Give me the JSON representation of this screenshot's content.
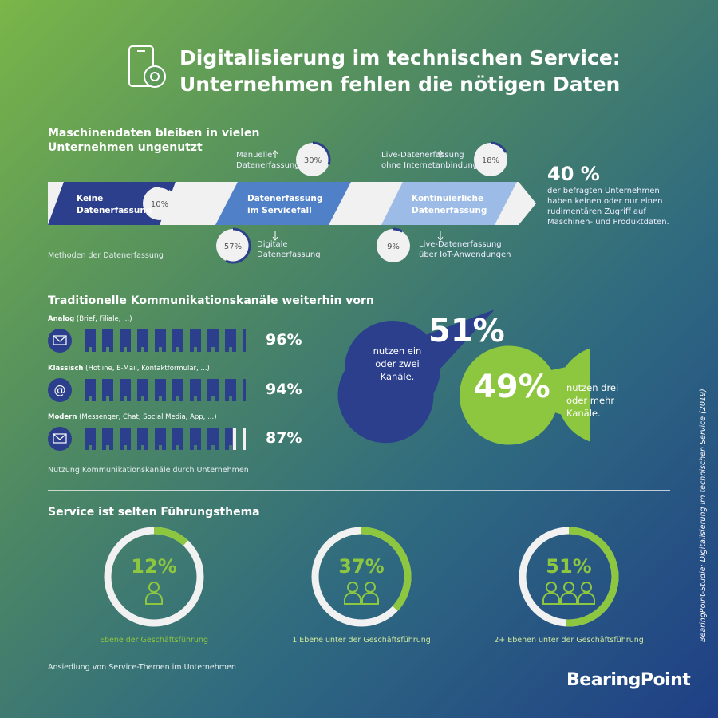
{
  "header": {
    "title_line1": "Digitalisierung im technischen Service:",
    "title_line2": "Unternehmen fehlen die nötigen Daten",
    "icon": "phone-gear-icon"
  },
  "colors": {
    "dark_blue": "#2b3f8c",
    "mid_blue": "#4f80c8",
    "light_blue": "#9cbbe6",
    "lime": "#8dc63f",
    "band": "#f1f1f1"
  },
  "section1": {
    "heading_line1": "Maschinendaten bleiben in vielen",
    "heading_line2": "Unternehmen ungenutzt",
    "caption": "Methoden der Datenerfassung",
    "stages": [
      {
        "line1": "Keine",
        "line2": "Datenerfassung"
      },
      {
        "line1": "Datenerfassung",
        "line2": "im Servicefall"
      },
      {
        "line1": "Kontinuierliche",
        "line2": "Datenerfassung"
      }
    ],
    "sub": [
      {
        "value": "10%",
        "line1": "",
        "line2": ""
      },
      {
        "value": "30%",
        "line1": "Manuelle",
        "line2": "Datenerfassung"
      },
      {
        "value": "57%",
        "line1": "Digitale",
        "line2": "Datenerfassung"
      },
      {
        "value": "18%",
        "line1": "Live-Datenerfassung",
        "line2": "ohne Internetanbindung"
      },
      {
        "value": "9%",
        "line1": "Live-Datenerfassung",
        "line2": "über IoT-Anwendungen"
      }
    ],
    "highlight_value": "40 %",
    "highlight_text": [
      "der befragten Unternehmen",
      "haben keinen oder nur einen",
      "rudimentären Zugriff auf",
      "Maschinen- und Produktdaten."
    ]
  },
  "section2": {
    "heading": "Traditionelle Kommunikationskanäle weiterhin vorn",
    "caption": "Nutzung Kommunikationskanäle durch Unternehmen",
    "rows": [
      {
        "label_bold": "Analog",
        "label_rest": " (Brief, Filiale, ...)",
        "value": "96%",
        "icon": "envelope-icon"
      },
      {
        "label_bold": "Klassisch",
        "label_rest": " (Hotline, E-Mail, Kontaktformular, ...)",
        "value": "94%",
        "icon": "at-sign-icon"
      },
      {
        "label_bold": "Modern",
        "label_rest": " (Messenger, Chat, Social Media, App, ...)",
        "value": "87%",
        "icon": "chat-envelope-icon"
      }
    ],
    "bubble_a": {
      "value": "51%",
      "lines": [
        "nutzen ein",
        "oder zwei",
        "Kanäle."
      ]
    },
    "bubble_b": {
      "value": "49%",
      "lines": [
        "nutzen drei",
        "oder mehr",
        "Kanäle."
      ]
    }
  },
  "section3": {
    "heading": "Service ist selten Führungsthema",
    "caption": "Ansiedlung von Service-Themen im Unternehmen",
    "rings": [
      {
        "value": "12%",
        "label": "Ebene der Geschäftsführung",
        "people": 1
      },
      {
        "value": "37%",
        "label": "1 Ebene unter der Geschäftsführung",
        "people": 2
      },
      {
        "value": "51%",
        "label": "2+ Ebenen unter der Geschäftsführung",
        "people": 3
      }
    ]
  },
  "source": "BearingPoint-Studie: Digitalisierung im technischen Service (2019)",
  "logo": "BearingPoint",
  "chart_data": {
    "type": "table",
    "data_collection": [
      {
        "category": "Keine Datenerfassung",
        "value": 10
      },
      {
        "category": "Manuelle Datenerfassung",
        "value": 30
      },
      {
        "category": "Digitale Datenerfassung",
        "value": 57
      },
      {
        "category": "Live-Datenerfassung ohne Internetanbindung",
        "value": 18
      },
      {
        "category": "Live-Datenerfassung über IoT-Anwendungen",
        "value": 9
      }
    ],
    "channels": [
      {
        "category": "Analog",
        "value": 96
      },
      {
        "category": "Klassisch",
        "value": 94
      },
      {
        "category": "Modern",
        "value": 87
      }
    ],
    "channel_count": [
      {
        "category": "ein oder zwei Kanäle",
        "value": 51
      },
      {
        "category": "drei oder mehr Kanäle",
        "value": 49
      }
    ],
    "service_level": [
      {
        "category": "Ebene der Geschäftsführung",
        "value": 12
      },
      {
        "category": "1 Ebene unter der Geschäftsführung",
        "value": 37
      },
      {
        "category": "2+ Ebenen unter der Geschäftsführung",
        "value": 51
      }
    ]
  }
}
